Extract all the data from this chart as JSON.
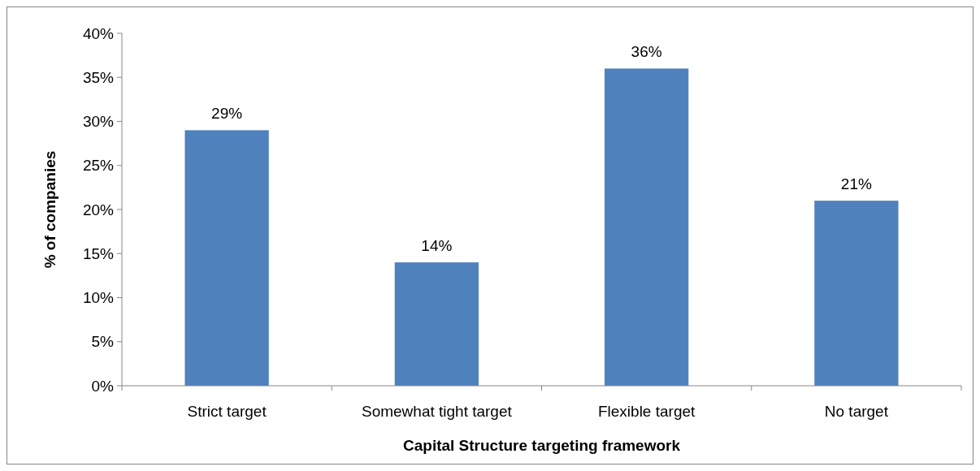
{
  "chart_data": {
    "type": "bar",
    "xlabel": "Capital Structure targeting framework",
    "ylabel": "% of companies",
    "categories": [
      "Strict target",
      "Somewhat tight target",
      "Flexible target",
      "No target"
    ],
    "values": [
      29,
      14,
      36,
      21
    ],
    "color": "#4f81bd",
    "value_labels": [
      "29%",
      "14%",
      "36%",
      "21%"
    ],
    "ylim": [
      0,
      40
    ],
    "yticks": [
      {
        "value": 0,
        "label": "0%"
      },
      {
        "value": 5,
        "label": "5%"
      },
      {
        "value": 10,
        "label": "10%"
      },
      {
        "value": 15,
        "label": "15%"
      },
      {
        "value": 20,
        "label": "20%"
      },
      {
        "value": 25,
        "label": "25%"
      },
      {
        "value": 30,
        "label": "30%"
      },
      {
        "value": 35,
        "label": "35%"
      },
      {
        "value": 40,
        "label": "40%"
      }
    ],
    "grid": false
  }
}
